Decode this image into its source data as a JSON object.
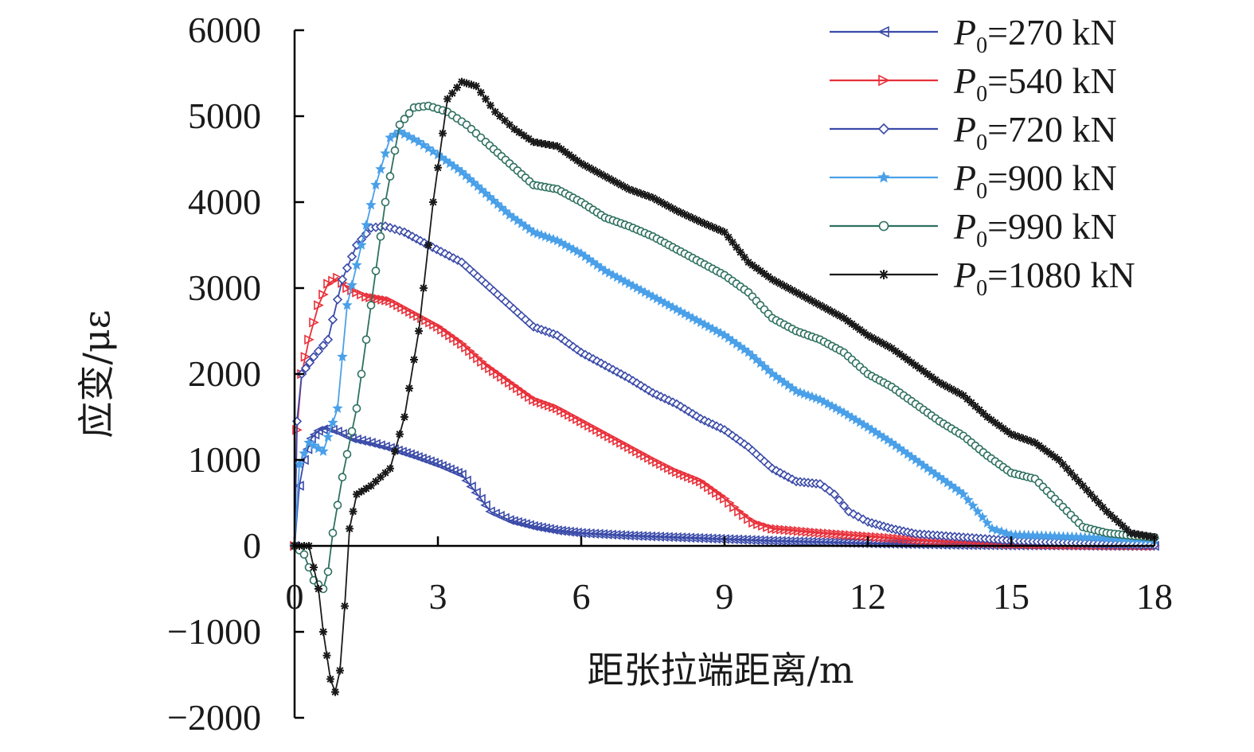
{
  "chart_data": {
    "type": "line",
    "xlabel": "距张拉端距离/m",
    "ylabel": "应变/με",
    "xlim": [
      0,
      18
    ],
    "ylim": [
      -2000,
      6000
    ],
    "xticks": [
      0,
      3,
      6,
      9,
      12,
      15,
      18
    ],
    "yticks": [
      -2000,
      -1000,
      0,
      1000,
      2000,
      3000,
      4000,
      5000,
      6000
    ],
    "xtick_labels": [
      "0",
      "3",
      "6",
      "9",
      "12",
      "15",
      "18"
    ],
    "ytick_labels": [
      "−2000",
      "−1000",
      "0",
      "1000",
      "2000",
      "3000",
      "4000",
      "5000",
      "6000"
    ],
    "grid": false,
    "legend_position": "top-right",
    "legend_symbol": "P",
    "legend_subscript": "0",
    "series": [
      {
        "name": "P0=270 kN",
        "legend_suffix": "=270 kN",
        "color": "#3a4aa8",
        "marker": "triangle-left",
        "points": [
          [
            0,
            0
          ],
          [
            0.1,
            700
          ],
          [
            0.2,
            1000
          ],
          [
            0.35,
            1250
          ],
          [
            0.5,
            1340
          ],
          [
            0.7,
            1370
          ],
          [
            0.9,
            1330
          ],
          [
            1.2,
            1250
          ],
          [
            1.6,
            1200
          ],
          [
            2,
            1140
          ],
          [
            2.5,
            1050
          ],
          [
            3,
            950
          ],
          [
            3.5,
            830
          ],
          [
            3.8,
            620
          ],
          [
            4.1,
            400
          ],
          [
            4.5,
            300
          ],
          [
            5,
            230
          ],
          [
            5.5,
            180
          ],
          [
            6,
            150
          ],
          [
            7,
            120
          ],
          [
            8,
            100
          ],
          [
            9,
            80
          ],
          [
            10,
            60
          ],
          [
            11,
            45
          ],
          [
            12,
            30
          ],
          [
            13,
            20
          ],
          [
            14,
            10
          ],
          [
            15,
            5
          ],
          [
            16,
            5
          ],
          [
            17,
            0
          ],
          [
            18,
            0
          ]
        ]
      },
      {
        "name": "P0=540 kN",
        "legend_suffix": "=540 kN",
        "color": "#e8303a",
        "marker": "triangle-right",
        "points": [
          [
            0,
            0
          ],
          [
            0.05,
            1350
          ],
          [
            0.15,
            2000
          ],
          [
            0.3,
            2400
          ],
          [
            0.5,
            2800
          ],
          [
            0.7,
            3050
          ],
          [
            0.9,
            3120
          ],
          [
            1.1,
            3000
          ],
          [
            1.5,
            2900
          ],
          [
            2,
            2850
          ],
          [
            2.5,
            2700
          ],
          [
            3,
            2550
          ],
          [
            3.5,
            2350
          ],
          [
            4,
            2100
          ],
          [
            4.5,
            1900
          ],
          [
            5,
            1700
          ],
          [
            5.5,
            1600
          ],
          [
            6,
            1450
          ],
          [
            6.5,
            1300
          ],
          [
            7,
            1150
          ],
          [
            7.5,
            1000
          ],
          [
            8,
            860
          ],
          [
            8.5,
            750
          ],
          [
            9,
            550
          ],
          [
            9.3,
            400
          ],
          [
            9.6,
            270
          ],
          [
            10,
            200
          ],
          [
            11,
            150
          ],
          [
            12,
            110
          ],
          [
            13,
            70
          ],
          [
            14,
            40
          ],
          [
            15,
            20
          ],
          [
            16,
            10
          ],
          [
            17,
            5
          ],
          [
            18,
            0
          ]
        ]
      },
      {
        "name": "P0=720 kN",
        "legend_suffix": "=720 kN",
        "color": "#3a4aa8",
        "marker": "diamond",
        "points": [
          [
            0,
            0
          ],
          [
            0.05,
            1450
          ],
          [
            0.15,
            2000
          ],
          [
            0.4,
            2200
          ],
          [
            0.7,
            2400
          ],
          [
            1,
            3100
          ],
          [
            1.3,
            3500
          ],
          [
            1.6,
            3700
          ],
          [
            1.9,
            3720
          ],
          [
            2.3,
            3650
          ],
          [
            2.8,
            3500
          ],
          [
            3.5,
            3300
          ],
          [
            4,
            3050
          ],
          [
            4.5,
            2800
          ],
          [
            5,
            2550
          ],
          [
            5.5,
            2450
          ],
          [
            6,
            2250
          ],
          [
            6.5,
            2100
          ],
          [
            7,
            1950
          ],
          [
            7.5,
            1780
          ],
          [
            8,
            1650
          ],
          [
            8.5,
            1480
          ],
          [
            9,
            1350
          ],
          [
            9.5,
            1150
          ],
          [
            10,
            900
          ],
          [
            10.5,
            750
          ],
          [
            11,
            720
          ],
          [
            11.3,
            600
          ],
          [
            11.6,
            400
          ],
          [
            12,
            280
          ],
          [
            12.5,
            200
          ],
          [
            13,
            140
          ],
          [
            14,
            100
          ],
          [
            15,
            60
          ],
          [
            16,
            40
          ],
          [
            17,
            20
          ],
          [
            18,
            10
          ]
        ]
      },
      {
        "name": "P0=900 kN",
        "legend_suffix": "=900 kN",
        "color": "#4aa0e8",
        "marker": "star",
        "points": [
          [
            0,
            0
          ],
          [
            0.1,
            950
          ],
          [
            0.3,
            1200
          ],
          [
            0.6,
            1100
          ],
          [
            0.9,
            1600
          ],
          [
            1.1,
            2800
          ],
          [
            1.4,
            3500
          ],
          [
            1.7,
            4200
          ],
          [
            2,
            4750
          ],
          [
            2.2,
            4820
          ],
          [
            2.6,
            4700
          ],
          [
            3,
            4550
          ],
          [
            3.5,
            4350
          ],
          [
            4,
            4100
          ],
          [
            4.5,
            3850
          ],
          [
            5,
            3650
          ],
          [
            5.5,
            3550
          ],
          [
            6,
            3400
          ],
          [
            6.5,
            3200
          ],
          [
            7,
            3050
          ],
          [
            7.5,
            2900
          ],
          [
            8,
            2750
          ],
          [
            8.5,
            2600
          ],
          [
            9,
            2450
          ],
          [
            9.5,
            2250
          ],
          [
            10,
            2000
          ],
          [
            10.5,
            1800
          ],
          [
            11,
            1700
          ],
          [
            11.5,
            1550
          ],
          [
            12,
            1380
          ],
          [
            12.5,
            1200
          ],
          [
            13,
            1000
          ],
          [
            13.5,
            800
          ],
          [
            14,
            600
          ],
          [
            14.3,
            400
          ],
          [
            14.6,
            200
          ],
          [
            15,
            130
          ],
          [
            16,
            110
          ],
          [
            17,
            90
          ],
          [
            18,
            70
          ]
        ]
      },
      {
        "name": "P0=990 kN",
        "legend_suffix": "=990 kN",
        "color": "#2e7060",
        "marker": "circle",
        "points": [
          [
            0,
            0
          ],
          [
            0.2,
            -100
          ],
          [
            0.4,
            -400
          ],
          [
            0.6,
            -500
          ],
          [
            0.7,
            -300
          ],
          [
            0.8,
            150
          ],
          [
            1,
            800
          ],
          [
            1.3,
            1600
          ],
          [
            1.6,
            2800
          ],
          [
            1.9,
            4000
          ],
          [
            2.2,
            4900
          ],
          [
            2.5,
            5100
          ],
          [
            2.8,
            5120
          ],
          [
            3.2,
            5050
          ],
          [
            3.6,
            4900
          ],
          [
            4,
            4700
          ],
          [
            4.5,
            4450
          ],
          [
            5,
            4200
          ],
          [
            5.5,
            4150
          ],
          [
            6,
            4000
          ],
          [
            6.5,
            3820
          ],
          [
            7,
            3720
          ],
          [
            7.5,
            3600
          ],
          [
            8,
            3450
          ],
          [
            8.5,
            3300
          ],
          [
            9,
            3150
          ],
          [
            9.5,
            2950
          ],
          [
            10,
            2650
          ],
          [
            10.5,
            2500
          ],
          [
            11,
            2400
          ],
          [
            11.5,
            2250
          ],
          [
            12,
            2000
          ],
          [
            12.5,
            1850
          ],
          [
            13,
            1650
          ],
          [
            13.5,
            1450
          ],
          [
            14,
            1280
          ],
          [
            14.5,
            1050
          ],
          [
            15,
            850
          ],
          [
            15.5,
            780
          ],
          [
            16,
            500
          ],
          [
            16.5,
            220
          ],
          [
            17,
            150
          ],
          [
            17.5,
            120
          ],
          [
            18,
            100
          ]
        ]
      },
      {
        "name": "P0=1080 kN",
        "legend_suffix": "=1080 kN",
        "color": "#1a1a1a",
        "marker": "asterisk",
        "points": [
          [
            0,
            0
          ],
          [
            0.3,
            0
          ],
          [
            0.5,
            -500
          ],
          [
            0.6,
            -1000
          ],
          [
            0.75,
            -1550
          ],
          [
            0.85,
            -1700
          ],
          [
            0.95,
            -1450
          ],
          [
            1.05,
            -700
          ],
          [
            1.15,
            200
          ],
          [
            1.3,
            600
          ],
          [
            1.6,
            700
          ],
          [
            2,
            900
          ],
          [
            2.3,
            1500
          ],
          [
            2.6,
            2500
          ],
          [
            2.9,
            4000
          ],
          [
            3.2,
            5200
          ],
          [
            3.5,
            5400
          ],
          [
            3.8,
            5350
          ],
          [
            4.2,
            5050
          ],
          [
            4.6,
            4850
          ],
          [
            5,
            4700
          ],
          [
            5.5,
            4650
          ],
          [
            6,
            4450
          ],
          [
            6.5,
            4300
          ],
          [
            7,
            4150
          ],
          [
            7.5,
            4050
          ],
          [
            8,
            3900
          ],
          [
            8.5,
            3770
          ],
          [
            9,
            3650
          ],
          [
            9.5,
            3300
          ],
          [
            10,
            3100
          ],
          [
            10.5,
            2950
          ],
          [
            11,
            2800
          ],
          [
            11.5,
            2650
          ],
          [
            12,
            2450
          ],
          [
            12.5,
            2300
          ],
          [
            13,
            2100
          ],
          [
            13.5,
            1900
          ],
          [
            14,
            1750
          ],
          [
            14.5,
            1500
          ],
          [
            15,
            1300
          ],
          [
            15.5,
            1200
          ],
          [
            16,
            1000
          ],
          [
            16.5,
            700
          ],
          [
            17,
            400
          ],
          [
            17.5,
            150
          ],
          [
            18,
            100
          ]
        ]
      }
    ]
  }
}
